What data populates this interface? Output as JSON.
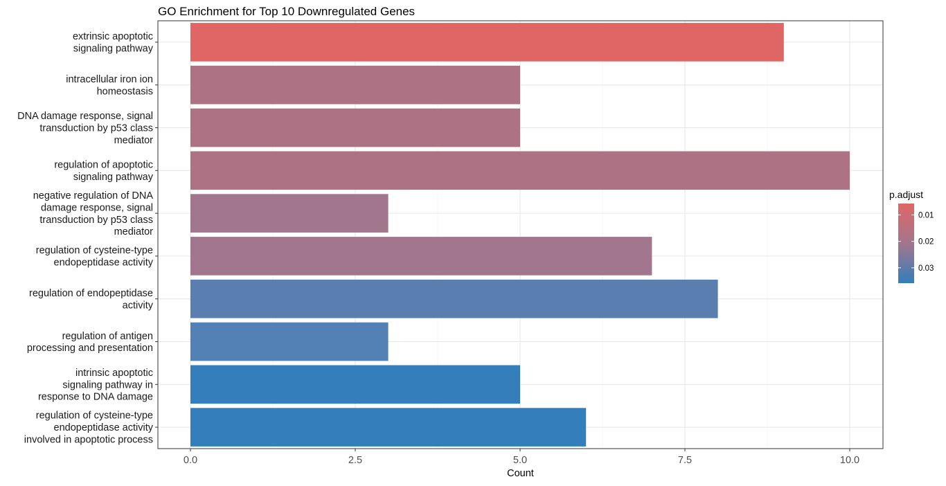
{
  "chart_data": {
    "type": "bar",
    "orientation": "horizontal",
    "title": "GO Enrichment for Top 10 Downregulated Genes",
    "xlabel": "Count",
    "ylabel": "",
    "xlim": [
      0,
      10.5
    ],
    "xticks": [
      "0.0",
      "2.5",
      "5.0",
      "7.5",
      "10.0"
    ],
    "xtick_values": [
      0,
      2.5,
      5,
      7.5,
      10
    ],
    "grid": true,
    "categories": [
      "extrinsic apoptotic\nsignaling pathway",
      "intracellular iron ion\nhomeostasis",
      "DNA damage response, signal\ntransduction by p53 class\nmediator",
      "regulation of apoptotic\nsignaling pathway",
      "negative regulation of DNA\ndamage response, signal\ntransduction by p53 class\nmediator",
      "regulation of cysteine-type\nendopeptidase activity",
      "regulation of endopeptidase\nactivity",
      "regulation of antigen\nprocessing and presentation",
      "intrinsic apoptotic\nsignaling pathway in\nresponse to DNA damage",
      "regulation of cysteine-type\nendopeptidase activity\ninvolved in apoptotic process"
    ],
    "values": [
      9,
      5,
      5,
      10,
      3,
      7,
      8,
      3,
      5,
      6
    ],
    "bar_colors": [
      "#e06666",
      "#ad7385",
      "#ad7385",
      "#ad7385",
      "#a2768d",
      "#a2768d",
      "#5b7eb0",
      "#5380b5",
      "#337ebb",
      "#337ebb"
    ],
    "legend": {
      "title": "p.adjust",
      "position": "right",
      "ticks": [
        "0.01",
        "0.02",
        "0.03"
      ],
      "tick_values": [
        0.01,
        0.02,
        0.03
      ],
      "range": [
        0.0057,
        0.0358
      ],
      "color_low": "#e06666",
      "color_high": "#337ebb"
    }
  }
}
